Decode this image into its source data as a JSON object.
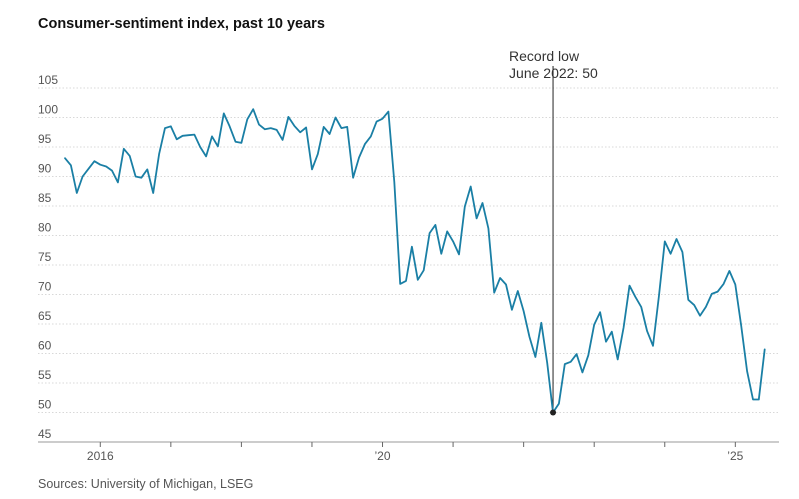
{
  "chart_data": {
    "type": "line",
    "title": "Consumer-sentiment index, past 10 years",
    "source": "Sources: University of Michigan, LSEG",
    "xlabel": "",
    "ylabel": "",
    "xlim": [
      "2015-07",
      "2025-07"
    ],
    "ylim": [
      45,
      105
    ],
    "y_ticks": [
      45,
      50,
      55,
      60,
      65,
      70,
      75,
      80,
      85,
      90,
      95,
      100,
      105
    ],
    "x_tick_labels": [
      {
        "date": "2016-01",
        "label": "2016"
      },
      {
        "date": "2020-01",
        "label": "’20"
      },
      {
        "date": "2025-01",
        "label": "’25"
      }
    ],
    "x_minor_ticks": [
      "2017-01",
      "2018-01",
      "2019-01",
      "2021-01",
      "2022-01",
      "2023-01",
      "2024-01"
    ],
    "grid": "horizontal",
    "color": "#1a7fa5",
    "annotation": {
      "date": "2022-06",
      "value": 50,
      "line1": "Record low",
      "line2": "June 2022: 50"
    },
    "series": [
      {
        "x": [
          "2015-07",
          "2015-08",
          "2015-09",
          "2015-10",
          "2015-11",
          "2015-12",
          "2016-01",
          "2016-02",
          "2016-03",
          "2016-04",
          "2016-05",
          "2016-06",
          "2016-07",
          "2016-08",
          "2016-09",
          "2016-10",
          "2016-11",
          "2016-12",
          "2017-01",
          "2017-02",
          "2017-03",
          "2017-04",
          "2017-05",
          "2017-06",
          "2017-07",
          "2017-08",
          "2017-09",
          "2017-10",
          "2017-11",
          "2017-12",
          "2018-01",
          "2018-02",
          "2018-03",
          "2018-04",
          "2018-05",
          "2018-06",
          "2018-07",
          "2018-08",
          "2018-09",
          "2018-10",
          "2018-11",
          "2018-12",
          "2019-01",
          "2019-02",
          "2019-03",
          "2019-04",
          "2019-05",
          "2019-06",
          "2019-07",
          "2019-08",
          "2019-09",
          "2019-10",
          "2019-11",
          "2019-12",
          "2020-01",
          "2020-02",
          "2020-03",
          "2020-04",
          "2020-05",
          "2020-06",
          "2020-07",
          "2020-08",
          "2020-09",
          "2020-10",
          "2020-11",
          "2020-12",
          "2021-01",
          "2021-02",
          "2021-03",
          "2021-04",
          "2021-05",
          "2021-06",
          "2021-07",
          "2021-08",
          "2021-09",
          "2021-10",
          "2021-11",
          "2021-12",
          "2022-01",
          "2022-02",
          "2022-03",
          "2022-04",
          "2022-05",
          "2022-06",
          "2022-07",
          "2022-08",
          "2022-09",
          "2022-10",
          "2022-11",
          "2022-12",
          "2023-01",
          "2023-02",
          "2023-03",
          "2023-04",
          "2023-05",
          "2023-06",
          "2023-07",
          "2023-08",
          "2023-09",
          "2023-10",
          "2023-11",
          "2023-12",
          "2024-01",
          "2024-02",
          "2024-03",
          "2024-04",
          "2024-05",
          "2024-06",
          "2024-07",
          "2024-08",
          "2024-09",
          "2024-10",
          "2024-11",
          "2024-12",
          "2025-01",
          "2025-02",
          "2025-03",
          "2025-04",
          "2025-05",
          "2025-06"
        ],
        "y": [
          93.1,
          91.9,
          87.2,
          90.0,
          91.3,
          92.6,
          92.0,
          91.7,
          91.0,
          89.0,
          94.7,
          93.5,
          90.0,
          89.8,
          91.2,
          87.2,
          93.8,
          98.2,
          98.5,
          96.3,
          96.9,
          97.0,
          97.1,
          95.0,
          93.4,
          96.8,
          95.1,
          100.7,
          98.5,
          95.9,
          95.7,
          99.7,
          101.4,
          98.8,
          98.0,
          98.2,
          97.9,
          96.2,
          100.1,
          98.6,
          97.5,
          98.3,
          91.2,
          93.8,
          98.4,
          97.2,
          100.0,
          98.2,
          98.4,
          89.8,
          93.2,
          95.5,
          96.8,
          99.3,
          99.8,
          101.0,
          89.1,
          71.8,
          72.3,
          78.1,
          72.5,
          74.1,
          80.4,
          81.8,
          76.9,
          80.7,
          79.0,
          76.8,
          84.9,
          88.3,
          82.9,
          85.5,
          81.2,
          70.3,
          72.8,
          71.7,
          67.4,
          70.6,
          67.2,
          62.8,
          59.4,
          65.2,
          58.4,
          50.0,
          51.5,
          58.2,
          58.6,
          59.9,
          56.8,
          59.7,
          64.9,
          67.0,
          62.0,
          63.7,
          59.0,
          64.4,
          71.5,
          69.6,
          67.9,
          63.8,
          61.3,
          69.7,
          79.0,
          76.9,
          79.4,
          77.2,
          69.1,
          68.2,
          66.4,
          67.9,
          70.1,
          70.5,
          71.8,
          74.0,
          71.7,
          64.7,
          57.0,
          52.2,
          52.2,
          60.7
        ]
      }
    ]
  }
}
